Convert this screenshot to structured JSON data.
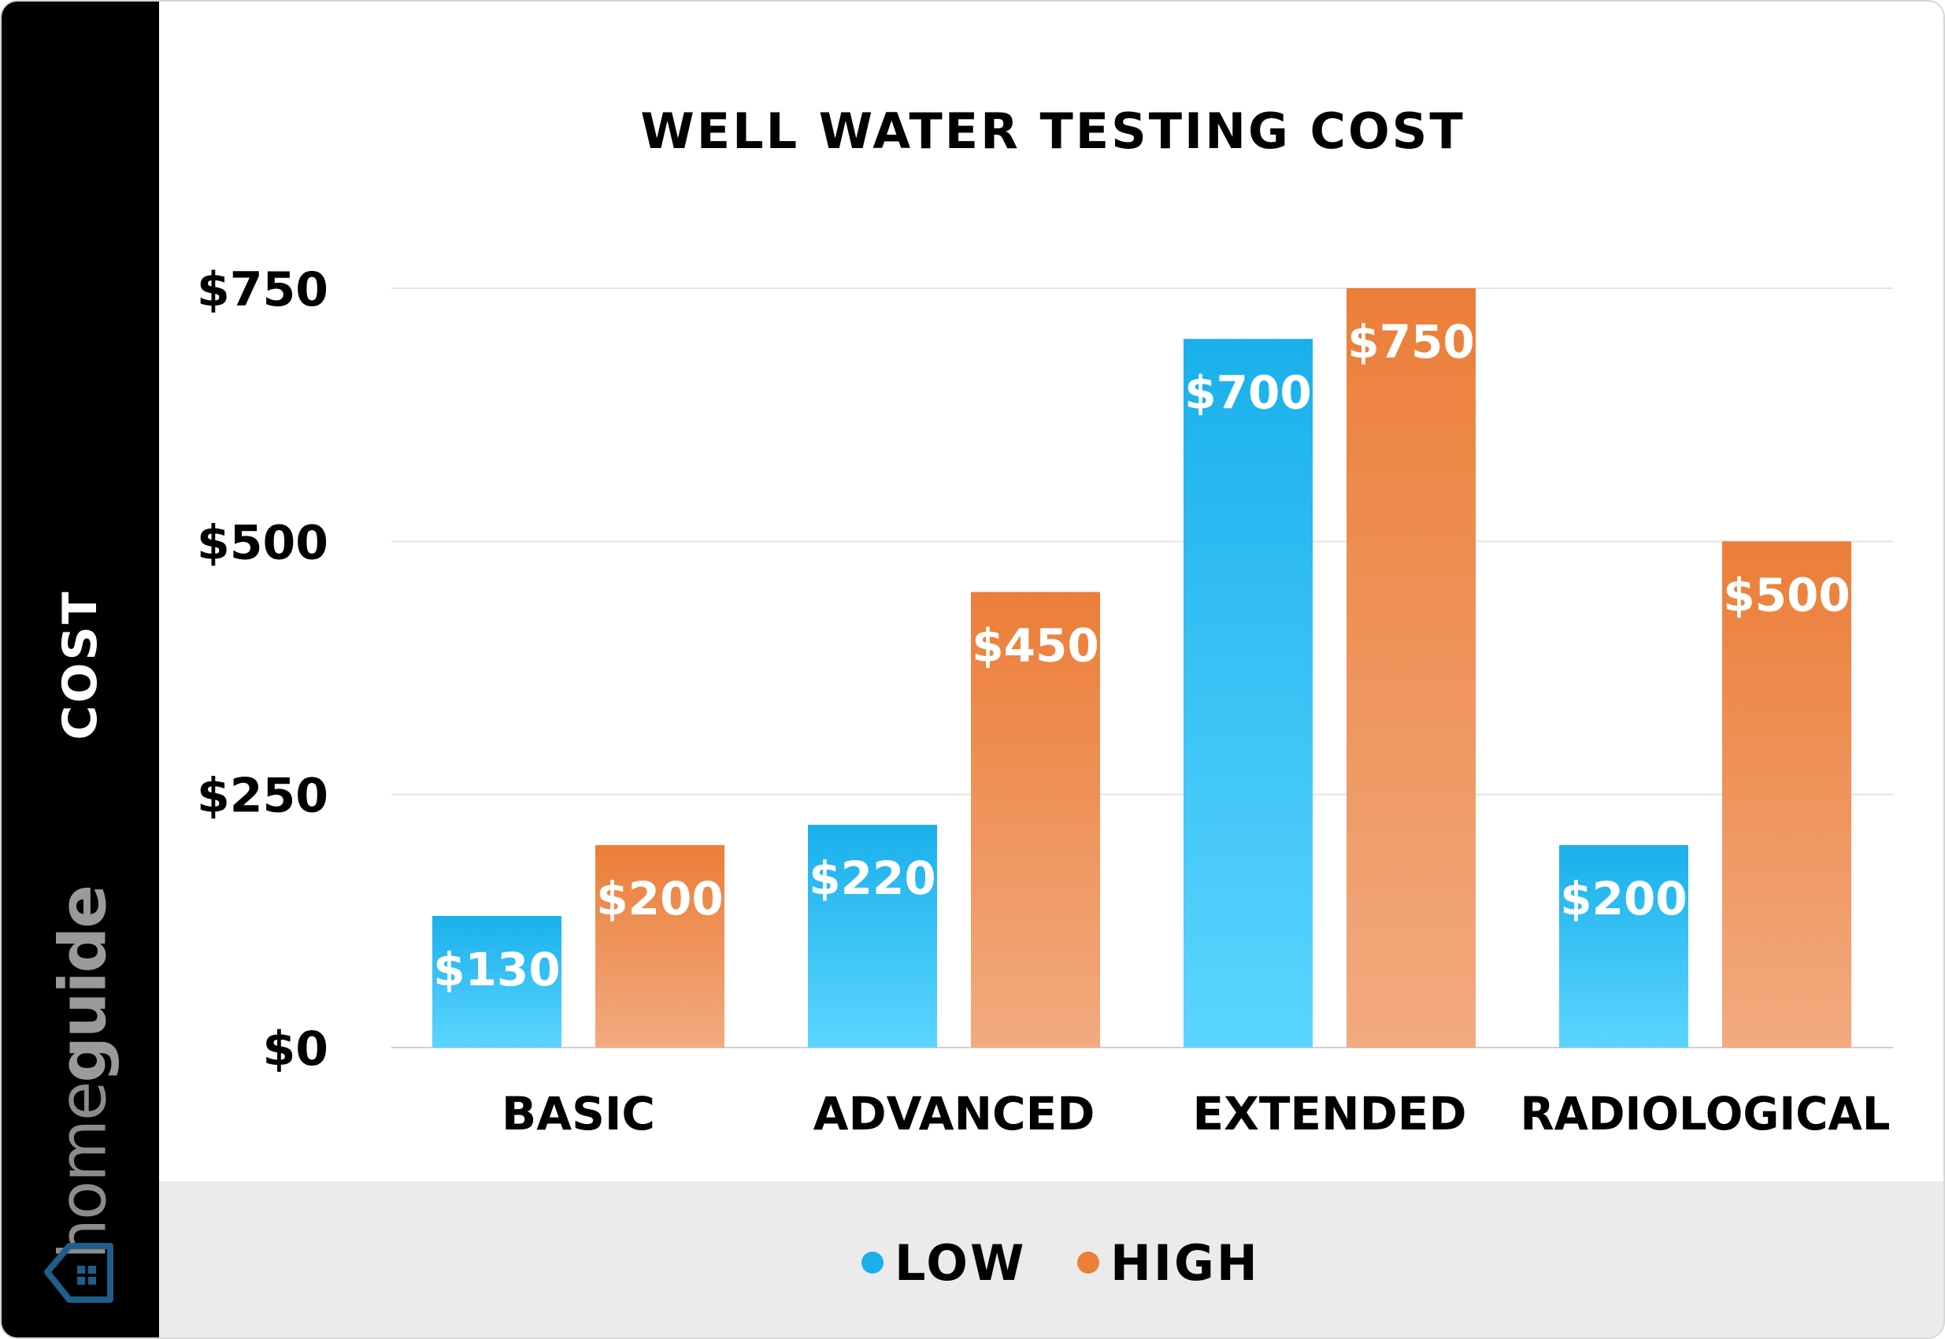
{
  "chart_data": {
    "type": "bar",
    "title": "WELL WATER TESTING COST",
    "ylabel": "COST",
    "xlabel": "",
    "categories": [
      "BASIC",
      "ADVANCED",
      "EXTENDED",
      "RADIOLOGICAL"
    ],
    "series": [
      {
        "name": "LOW",
        "values": [
          130,
          220,
          700,
          200
        ],
        "labels": [
          "$130",
          "$220",
          "$700",
          "$200"
        ],
        "color": "#1ab0ec"
      },
      {
        "name": "HIGH",
        "values": [
          200,
          450,
          750,
          500
        ],
        "labels": [
          "$200",
          "$450",
          "$750",
          "$500"
        ],
        "color": "#ec7e39"
      }
    ],
    "ylim": [
      0,
      750
    ],
    "yticks": [
      0,
      250,
      500,
      750
    ],
    "ytick_labels": [
      "$0",
      "$250",
      "$500",
      "$750"
    ],
    "grid": true,
    "legend_position": "bottom"
  },
  "brand": {
    "logo_text_light": "home",
    "logo_text_bold": "guide",
    "logo_icon": "house-icon"
  },
  "colors": {
    "sidebar": "#000000",
    "legend_band": "#ebebeb",
    "low_top": "#1ab0ec",
    "low_bottom": "#5bd5ff",
    "high_top": "#ec7e39",
    "high_bottom": "#f2aa7f"
  }
}
